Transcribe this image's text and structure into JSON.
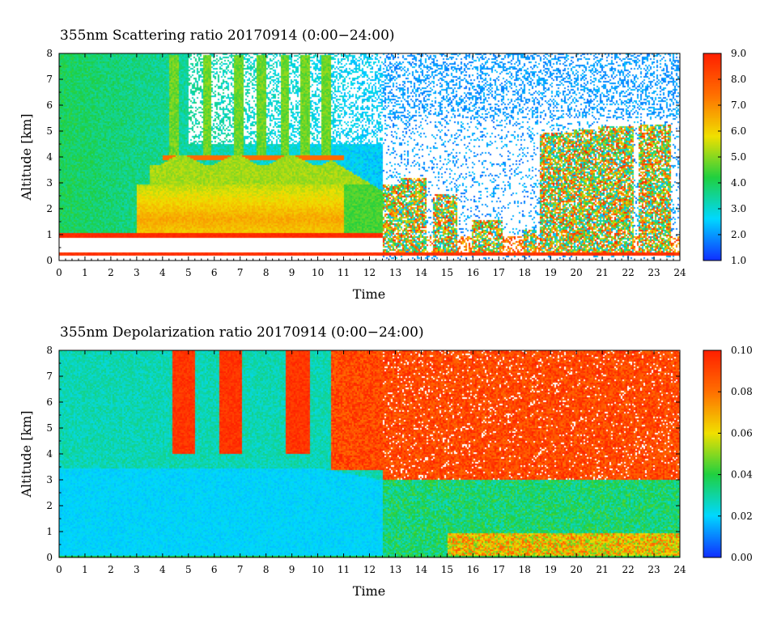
{
  "chart_data": [
    {
      "type": "heatmap",
      "title": "355nm Scattering ratio  20170914 (0:00−24:00)",
      "xlabel": "Time",
      "ylabel": "Altitude [km]",
      "x_range": [
        0,
        24
      ],
      "y_range": [
        0,
        8
      ],
      "x_ticks": [
        "0",
        "1",
        "2",
        "3",
        "4",
        "5",
        "6",
        "7",
        "8",
        "9",
        "10",
        "11",
        "12",
        "13",
        "14",
        "15",
        "16",
        "17",
        "18",
        "19",
        "20",
        "21",
        "22",
        "23",
        "24"
      ],
      "y_ticks": [
        "0",
        "1",
        "2",
        "3",
        "4",
        "5",
        "6",
        "7",
        "8"
      ],
      "colorbar": {
        "range": [
          1.0,
          9.0
        ],
        "ticks": [
          "1.0",
          "2.0",
          "3.0",
          "4.0",
          "5.0",
          "6.0",
          "7.0",
          "8.0",
          "9.0"
        ],
        "colormap": "rainbow",
        "colors": [
          "#1030ff",
          "#00d8ff",
          "#20d040",
          "#f0e000",
          "#ff7000",
          "#ff2000"
        ]
      },
      "no_data_color": "#ffffff",
      "features": [
        {
          "description": "Dense layer near 0.3 km",
          "time": [
            0,
            24
          ],
          "altitude": [
            0.2,
            0.35
          ],
          "value": 8.5
        },
        {
          "description": "Low cloud base near 1 km",
          "time": [
            0,
            12.5
          ],
          "altitude": [
            0.9,
            1.1
          ],
          "value": 8.8
        },
        {
          "description": "Aerosol layer",
          "time": [
            3,
            12.5
          ],
          "altitude": [
            1.0,
            3.0
          ],
          "value": 6.5
        },
        {
          "description": "Cloud tops near 4 km",
          "time": [
            4,
            11
          ],
          "altitude": [
            3.9,
            4.2
          ],
          "value": 8.0
        },
        {
          "description": "Broken convective clouds",
          "time": [
            12.5,
            24
          ],
          "altitude": [
            0.3,
            5.5
          ],
          "value": 7.5
        }
      ]
    },
    {
      "type": "heatmap",
      "title": "355nm Depolarization ratio  20170914 (0:00−24:00)",
      "xlabel": "Time",
      "ylabel": "Altitude [km]",
      "x_range": [
        0,
        24
      ],
      "y_range": [
        0,
        8
      ],
      "x_ticks": [
        "0",
        "1",
        "2",
        "3",
        "4",
        "5",
        "6",
        "7",
        "8",
        "9",
        "10",
        "11",
        "12",
        "13",
        "14",
        "15",
        "16",
        "17",
        "18",
        "19",
        "20",
        "21",
        "22",
        "23",
        "24"
      ],
      "y_ticks": [
        "0",
        "1",
        "2",
        "3",
        "4",
        "5",
        "6",
        "7",
        "8"
      ],
      "colorbar": {
        "range": [
          0.0,
          0.1
        ],
        "ticks": [
          "0.00",
          "0.02",
          "0.04",
          "0.06",
          "0.08",
          "0.10"
        ],
        "colormap": "rainbow",
        "colors": [
          "#1030ff",
          "#00d8ff",
          "#20d040",
          "#f0e000",
          "#ff7000",
          "#ff2000"
        ]
      },
      "no_data_color": "#ffffff",
      "features": [
        {
          "description": "Low depolarization boundary layer",
          "time": [
            0,
            12.5
          ],
          "altitude": [
            0,
            3.5
          ],
          "value": 0.022
        },
        {
          "description": "High depolarization upper region",
          "time": [
            10.5,
            24
          ],
          "altitude": [
            3.5,
            8
          ],
          "value": 0.09
        },
        {
          "description": "Mixed region low altitude",
          "time": [
            12.5,
            24
          ],
          "altitude": [
            0,
            3
          ],
          "value": 0.035
        }
      ]
    }
  ]
}
